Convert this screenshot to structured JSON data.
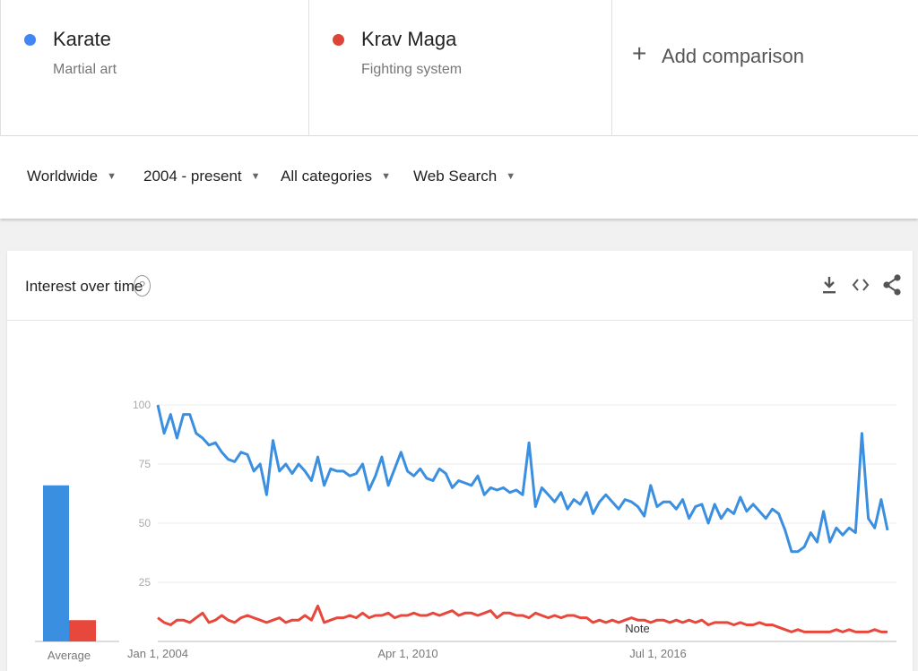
{
  "terms": [
    {
      "name": "Karate",
      "subtitle": "Martial art",
      "color": "#4285f4"
    },
    {
      "name": "Krav Maga",
      "subtitle": "Fighting system",
      "color": "#db4437"
    }
  ],
  "add_comparison": {
    "icon": "plus-icon",
    "label": "Add comparison"
  },
  "filters": [
    {
      "label": "Worldwide"
    },
    {
      "label": "2004 - present"
    },
    {
      "label": "All categories"
    },
    {
      "label": "Web Search"
    }
  ],
  "card": {
    "title": "Interest over time",
    "help_icon": "question-icon",
    "actions": [
      "download-icon",
      "embed-icon",
      "share-icon"
    ]
  },
  "chart_data": {
    "type": "line",
    "x_tick_labels": [
      "Jan 1, 2004",
      "Apr 1, 2010",
      "Jul 1, 2016"
    ],
    "y_ticks": [
      25,
      50,
      75,
      100
    ],
    "ylim": [
      0,
      100
    ],
    "grid": true,
    "note_label": "Note",
    "averages_label": "Average",
    "averages": [
      {
        "series": "Karate",
        "value": 66
      },
      {
        "series": "Krav Maga",
        "value": 9
      }
    ],
    "series": [
      {
        "name": "Karate",
        "color": "#3b8fe0",
        "values": [
          100,
          88,
          96,
          86,
          96,
          96,
          88,
          86,
          83,
          84,
          80,
          77,
          76,
          80,
          79,
          72,
          75,
          62,
          85,
          72,
          75,
          71,
          75,
          72,
          68,
          78,
          66,
          73,
          72,
          72,
          70,
          71,
          75,
          64,
          70,
          78,
          66,
          73,
          80,
          72,
          70,
          73,
          69,
          68,
          73,
          71,
          65,
          68,
          67,
          66,
          70,
          62,
          65,
          64,
          65,
          63,
          64,
          62,
          84,
          57,
          65,
          62,
          59,
          63,
          56,
          60,
          58,
          63,
          54,
          59,
          62,
          59,
          56,
          60,
          59,
          57,
          53,
          66,
          57,
          59,
          59,
          56,
          60,
          52,
          57,
          58,
          50,
          58,
          52,
          56,
          54,
          61,
          55,
          58,
          55,
          52,
          56,
          54,
          47,
          38,
          38,
          40,
          46,
          42,
          55,
          42,
          48,
          45,
          48,
          46,
          88,
          52,
          48,
          60,
          47
        ]
      },
      {
        "name": "Krav Maga",
        "color": "#e8473b",
        "values": [
          10,
          8,
          7,
          9,
          9,
          8,
          10,
          12,
          8,
          9,
          11,
          9,
          8,
          10,
          11,
          10,
          9,
          8,
          9,
          10,
          8,
          9,
          9,
          11,
          9,
          15,
          8,
          9,
          10,
          10,
          11,
          10,
          12,
          10,
          11,
          11,
          12,
          10,
          11,
          11,
          12,
          11,
          11,
          12,
          11,
          12,
          13,
          11,
          12,
          12,
          11,
          12,
          13,
          10,
          12,
          12,
          11,
          11,
          10,
          12,
          11,
          10,
          11,
          10,
          11,
          11,
          10,
          10,
          8,
          9,
          8,
          9,
          8,
          9,
          10,
          9,
          9,
          8,
          9,
          9,
          8,
          9,
          8,
          9,
          8,
          9,
          7,
          8,
          8,
          8,
          7,
          8,
          7,
          7,
          8,
          7,
          7,
          6,
          5,
          4,
          5,
          4,
          4,
          4,
          4,
          4,
          5,
          4,
          5,
          4,
          4,
          4,
          5,
          4,
          4
        ]
      }
    ]
  }
}
